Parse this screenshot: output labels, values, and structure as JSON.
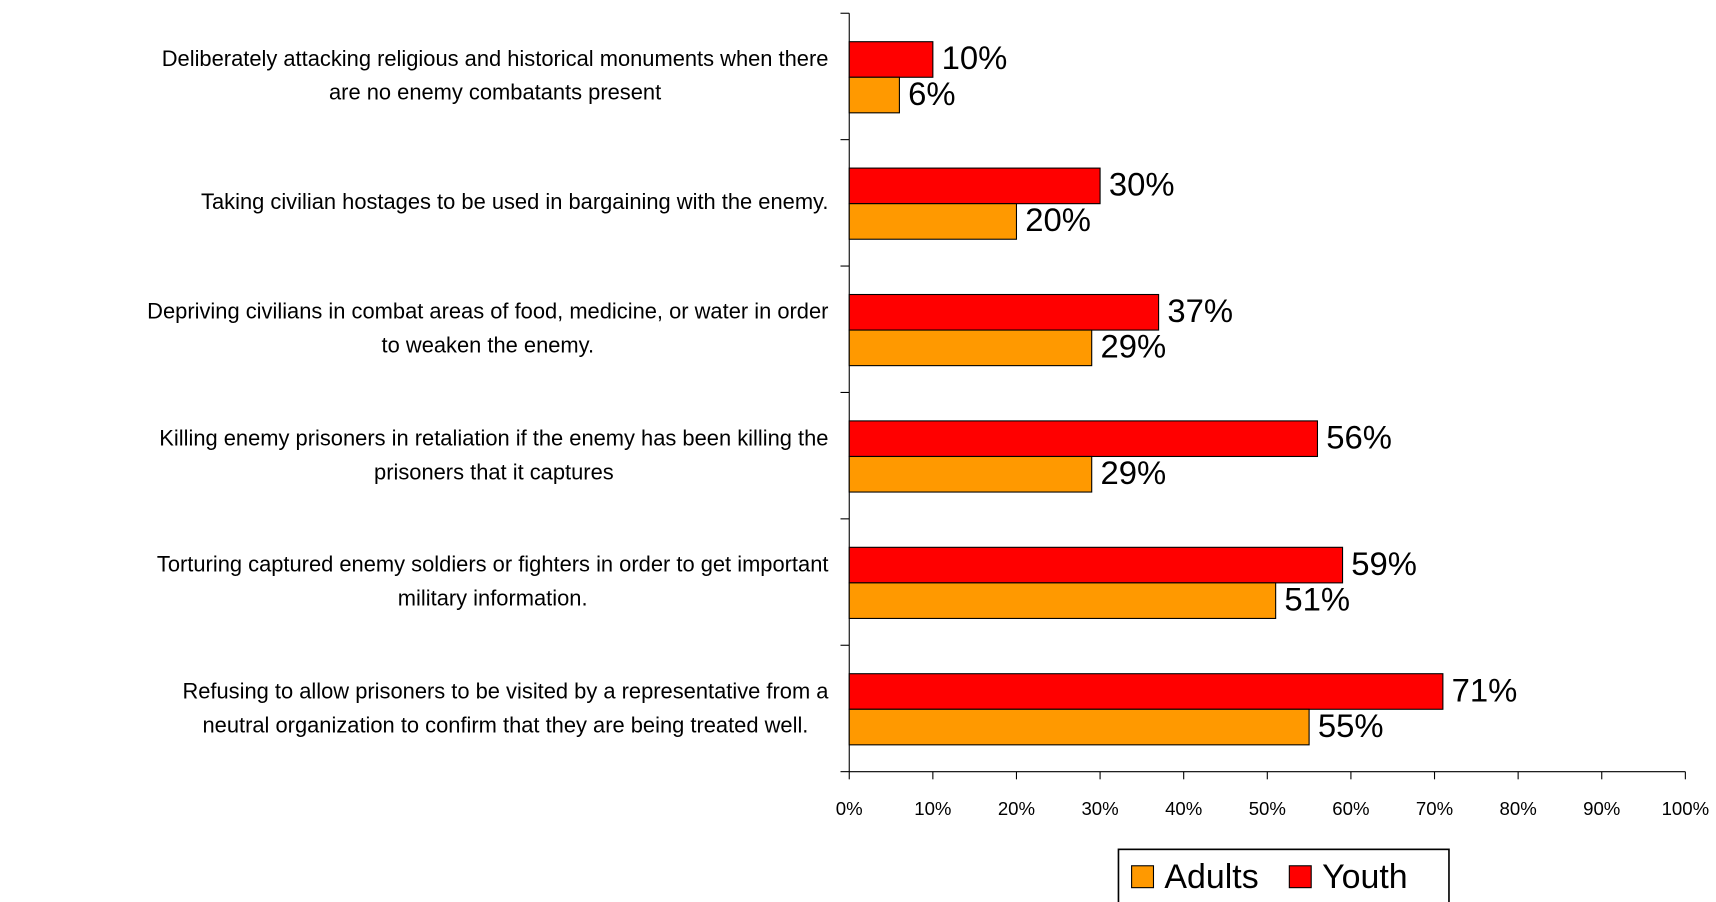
{
  "chart_data": {
    "type": "bar",
    "orientation": "horizontal",
    "categories": [
      "Deliberately attacking religious and historical monuments when there\nare no enemy combatants present",
      "Taking civilian hostages to be used in bargaining with the enemy.",
      "Depriving civilians in combat areas of food, medicine, or water in order\nto weaken the enemy.",
      "Killing enemy prisoners in retaliation if the enemy has been killing the\nprisoners that it captures",
      "Torturing captured enemy soldiers or fighters in order to get important\nmilitary information.",
      "Refusing to allow prisoners to be visited by a representative from a\nneutral organization to confirm that they are being treated well."
    ],
    "series": [
      {
        "name": "Adults",
        "color": "#ff9900",
        "values": [
          6,
          20,
          29,
          29,
          51,
          55
        ],
        "value_labels": [
          "6%",
          "20%",
          "29%",
          "29%",
          "51%",
          "55%"
        ]
      },
      {
        "name": "Youth",
        "color": "#ff0000",
        "values": [
          10,
          30,
          37,
          56,
          59,
          71
        ],
        "value_labels": [
          "10%",
          "30%",
          "37%",
          "56%",
          "59%",
          "71%"
        ]
      }
    ],
    "xlim": [
      0,
      100
    ],
    "xticks": [
      {
        "value": 0,
        "label": "0%"
      },
      {
        "value": 10,
        "label": "10%"
      },
      {
        "value": 20,
        "label": "20%"
      },
      {
        "value": 30,
        "label": "30%"
      },
      {
        "value": 40,
        "label": "40%"
      },
      {
        "value": 50,
        "label": "50%"
      },
      {
        "value": 60,
        "label": "60%"
      },
      {
        "value": 70,
        "label": "70%"
      },
      {
        "value": 80,
        "label": "80%"
      },
      {
        "value": 90,
        "label": "90%"
      },
      {
        "value": 100,
        "label": "100%"
      }
    ],
    "legend": "bottom"
  }
}
